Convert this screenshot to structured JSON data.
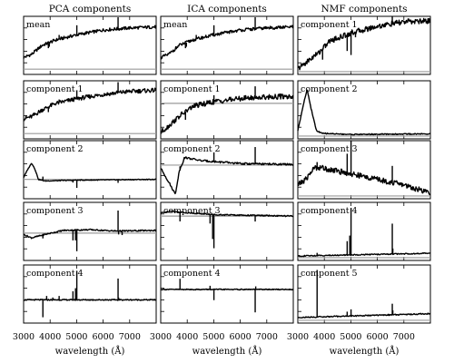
{
  "chart_data": {
    "type": "line",
    "x_range": [
      3000,
      8000
    ],
    "x_ticks": [
      3000,
      4000,
      5000,
      6000,
      7000
    ],
    "xlabel": "wavelength (Å)",
    "grid": false,
    "legend": "none",
    "colors": {
      "spectrum": "#000000",
      "zero_level": "#9a9a9a"
    },
    "columns": [
      {
        "title": "PCA components",
        "panels": [
          {
            "label": "mean",
            "ylim": [
              -0.1,
              1.0
            ],
            "zero": 0,
            "trend": [
              [
                3000,
                0.22
              ],
              [
                3300,
                0.28
              ],
              [
                3700,
                0.45
              ],
              [
                4200,
                0.55
              ],
              [
                5000,
                0.65
              ],
              [
                6000,
                0.74
              ],
              [
                7000,
                0.78
              ],
              [
                8000,
                0.8
              ]
            ],
            "noise": 0.03,
            "lines": [
              [
                3934,
                -0.1
              ],
              [
                3968,
                -0.08
              ],
              [
                4340,
                0.08
              ],
              [
                5007,
                0.18
              ],
              [
                6563,
                0.22
              ]
            ]
          },
          {
            "label": "component 1",
            "ylim": [
              -0.1,
              1.0
            ],
            "zero": 0,
            "trend": [
              [
                3000,
                0.28
              ],
              [
                3300,
                0.32
              ],
              [
                3700,
                0.45
              ],
              [
                4200,
                0.57
              ],
              [
                5000,
                0.66
              ],
              [
                6000,
                0.74
              ],
              [
                7000,
                0.8
              ],
              [
                8000,
                0.82
              ]
            ],
            "noise": 0.04,
            "lines": [
              [
                3934,
                -0.1
              ],
              [
                4340,
                0.06
              ],
              [
                5007,
                0.16
              ],
              [
                6563,
                0.2
              ]
            ]
          },
          {
            "label": "component 2",
            "ylim": [
              -0.5,
              1.0
            ],
            "zero": 0,
            "trend": [
              [
                3000,
                0.05
              ],
              [
                3150,
                0.25
              ],
              [
                3300,
                0.42
              ],
              [
                3420,
                0.28
              ],
              [
                3560,
                0.0
              ],
              [
                3800,
                -0.04
              ],
              [
                5000,
                -0.02
              ],
              [
                8000,
                0.0
              ]
            ],
            "noise": 0.01,
            "lines": [
              [
                3727,
                0.1
              ],
              [
                4861,
                -0.06
              ],
              [
                5007,
                -0.2
              ],
              [
                6563,
                -0.08
              ]
            ]
          },
          {
            "label": "component 3",
            "ylim": [
              -0.8,
              0.9
            ],
            "zero": 0,
            "trend": [
              [
                3000,
                -0.04
              ],
              [
                3300,
                -0.14
              ],
              [
                3800,
                -0.04
              ],
              [
                4500,
                0.08
              ],
              [
                5500,
                0.1
              ],
              [
                6500,
                0.06
              ],
              [
                8000,
                0.08
              ]
            ],
            "noise": 0.02,
            "lines": [
              [
                3727,
                -0.1
              ],
              [
                4861,
                -0.3
              ],
              [
                4959,
                -0.3
              ],
              [
                5007,
                -0.62
              ],
              [
                6563,
                0.6
              ],
              [
                6583,
                -0.1
              ],
              [
                6716,
                -0.12
              ]
            ]
          },
          {
            "label": "component 4",
            "ylim": [
              -0.6,
              0.9
            ],
            "zero": 0,
            "trend": [
              [
                3000,
                0.0
              ],
              [
                8000,
                0.0
              ]
            ],
            "noise": 0.015,
            "lines": [
              [
                3727,
                -0.45
              ],
              [
                3869,
                0.1
              ],
              [
                4101,
                0.06
              ],
              [
                4340,
                0.1
              ],
              [
                4861,
                0.22
              ],
              [
                4959,
                0.3
              ],
              [
                5007,
                0.75
              ],
              [
                6563,
                0.55
              ],
              [
                6583,
                0.06
              ]
            ]
          }
        ]
      },
      {
        "title": "ICA components",
        "panels": [
          {
            "label": "mean",
            "ylim": [
              -0.1,
              1.0
            ],
            "zero": 0,
            "trend": [
              [
                3000,
                0.22
              ],
              [
                3300,
                0.28
              ],
              [
                3700,
                0.45
              ],
              [
                4200,
                0.55
              ],
              [
                5000,
                0.65
              ],
              [
                6000,
                0.74
              ],
              [
                7000,
                0.78
              ],
              [
                8000,
                0.8
              ]
            ],
            "noise": 0.03,
            "lines": [
              [
                3934,
                -0.1
              ],
              [
                3968,
                -0.08
              ],
              [
                4340,
                0.08
              ],
              [
                5007,
                0.18
              ],
              [
                6563,
                0.22
              ]
            ]
          },
          {
            "label": "component 1",
            "ylim": [
              -0.8,
              1.0
            ],
            "zero": 0.3,
            "trend": [
              [
                3000,
                -0.6
              ],
              [
                3300,
                -0.4
              ],
              [
                3700,
                -0.1
              ],
              [
                4200,
                0.2
              ],
              [
                5000,
                0.35
              ],
              [
                6000,
                0.45
              ],
              [
                7000,
                0.5
              ],
              [
                8000,
                0.52
              ]
            ],
            "noise": 0.08,
            "lines": [
              [
                3934,
                -0.25
              ],
              [
                4340,
                0.1
              ],
              [
                5007,
                0.2
              ],
              [
                6563,
                0.35
              ]
            ]
          },
          {
            "label": "component 2",
            "ylim": [
              -0.9,
              1.0
            ],
            "zero": 0.2,
            "trend": [
              [
                3000,
                0.1
              ],
              [
                3300,
                -0.35
              ],
              [
                3550,
                -0.75
              ],
              [
                3700,
                0.0
              ],
              [
                3900,
                0.45
              ],
              [
                4500,
                0.35
              ],
              [
                6000,
                0.25
              ],
              [
                8000,
                0.22
              ]
            ],
            "noise": 0.03,
            "lines": [
              [
                3727,
                0.1
              ],
              [
                5007,
                0.3
              ],
              [
                6563,
                0.55
              ]
            ]
          },
          {
            "label": "component 3",
            "ylim": [
              -1.2,
              0.7
            ],
            "zero": 0.25,
            "trend": [
              [
                3000,
                0.35
              ],
              [
                3400,
                0.42
              ],
              [
                3700,
                0.38
              ],
              [
                5000,
                0.3
              ],
              [
                8000,
                0.25
              ]
            ],
            "noise": 0.02,
            "lines": [
              [
                3727,
                -0.3
              ],
              [
                4861,
                -0.3
              ],
              [
                4959,
                -0.8
              ],
              [
                5007,
                -1.1
              ],
              [
                6563,
                -0.2
              ]
            ]
          },
          {
            "label": "component 4",
            "ylim": [
              -1.0,
              0.9
            ],
            "zero": 0.1,
            "trend": [
              [
                3000,
                0.1
              ],
              [
                8000,
                0.1
              ]
            ],
            "noise": 0.015,
            "lines": [
              [
                3727,
                0.35
              ],
              [
                4861,
                0.12
              ],
              [
                5007,
                -0.35
              ],
              [
                6563,
                -0.75
              ],
              [
                6583,
                0.1
              ]
            ]
          }
        ]
      },
      {
        "title": "NMF components",
        "panels": [
          {
            "label": "component 1",
            "ylim": [
              -0.05,
              1.0
            ],
            "zero": 0,
            "trend": [
              [
                3000,
                0.05
              ],
              [
                3400,
                0.2
              ],
              [
                3800,
                0.35
              ],
              [
                4200,
                0.55
              ],
              [
                5000,
                0.7
              ],
              [
                6000,
                0.82
              ],
              [
                7000,
                0.9
              ],
              [
                8000,
                0.92
              ]
            ],
            "noise": 0.05,
            "lines": [
              [
                3934,
                -0.2
              ],
              [
                4861,
                -0.3
              ],
              [
                5007,
                -0.4
              ],
              [
                5175,
                -0.1
              ],
              [
                6563,
                0.15
              ]
            ]
          },
          {
            "label": "component 2",
            "ylim": [
              -0.05,
              1.0
            ],
            "zero": 0,
            "trend": [
              [
                3000,
                0.1
              ],
              [
                3200,
                0.55
              ],
              [
                3350,
                0.85
              ],
              [
                3500,
                0.5
              ],
              [
                3700,
                0.1
              ],
              [
                3900,
                0.05
              ],
              [
                5000,
                0.03
              ],
              [
                8000,
                0.04
              ]
            ],
            "noise": 0.01,
            "lines": []
          },
          {
            "label": "component 3",
            "ylim": [
              -0.05,
              1.0
            ],
            "zero": 0,
            "trend": [
              [
                3000,
                0.2
              ],
              [
                3300,
                0.3
              ],
              [
                3600,
                0.5
              ],
              [
                3800,
                0.52
              ],
              [
                5000,
                0.4
              ],
              [
                6000,
                0.3
              ],
              [
                7000,
                0.2
              ],
              [
                8000,
                0.05
              ]
            ],
            "noise": 0.05,
            "lines": [
              [
                3727,
                0.1
              ],
              [
                4861,
                0.35
              ],
              [
                5007,
                0.6
              ],
              [
                6563,
                0.3
              ]
            ]
          },
          {
            "label": "component 4",
            "ylim": [
              -0.05,
              1.0
            ],
            "zero": 0,
            "trend": [
              [
                3000,
                0.03
              ],
              [
                8000,
                0.08
              ]
            ],
            "noise": 0.01,
            "lines": [
              [
                3727,
                0.05
              ],
              [
                4861,
                0.25
              ],
              [
                4959,
                0.35
              ],
              [
                5007,
                0.85
              ],
              [
                6563,
                0.55
              ],
              [
                6583,
                0.1
              ]
            ]
          },
          {
            "label": "component 5",
            "ylim": [
              -0.05,
              1.0
            ],
            "zero": 0,
            "trend": [
              [
                3000,
                0.05
              ],
              [
                8000,
                0.12
              ]
            ],
            "noise": 0.01,
            "lines": [
              [
                3727,
                0.85
              ],
              [
                4861,
                0.08
              ],
              [
                5007,
                0.12
              ],
              [
                6563,
                0.2
              ],
              [
                6583,
                0.08
              ]
            ]
          }
        ]
      }
    ]
  }
}
